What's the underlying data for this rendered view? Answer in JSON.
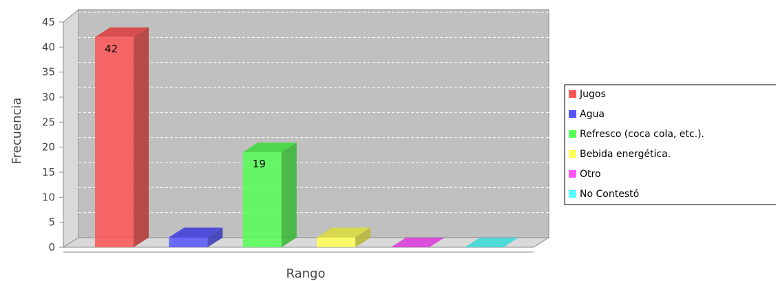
{
  "chart_data": {
    "type": "bar",
    "title": "",
    "xlabel": "Rango",
    "ylabel": "Frecuencia",
    "ylim": [
      0,
      45
    ],
    "yticks": [
      0,
      5,
      10,
      15,
      20,
      25,
      30,
      35,
      40,
      45
    ],
    "grid": true,
    "legend_position": "right",
    "categories": [
      "Jugos",
      "Agua",
      "Refresco (coca cola, etc.).",
      "Bebida energética.",
      "Otro",
      "No Contestó"
    ],
    "values": [
      42,
      2,
      19,
      2,
      0,
      0
    ],
    "data_labels": [
      "42",
      "",
      "19",
      "",
      "",
      ""
    ],
    "colors": [
      "#ff5555",
      "#5555ff",
      "#55ff55",
      "#ffff55",
      "#ff55ff",
      "#55ffff"
    ],
    "legend": [
      {
        "label": "Jugos",
        "color": "#ff5555"
      },
      {
        "label": "Agua",
        "color": "#5555ff"
      },
      {
        "label": "Refresco (coca cola, etc.).",
        "color": "#55ff55"
      },
      {
        "label": "Bebida energética.",
        "color": "#ffff55"
      },
      {
        "label": "Otro",
        "color": "#ff55ff"
      },
      {
        "label": "No Contestó",
        "color": "#55ffff"
      }
    ]
  }
}
